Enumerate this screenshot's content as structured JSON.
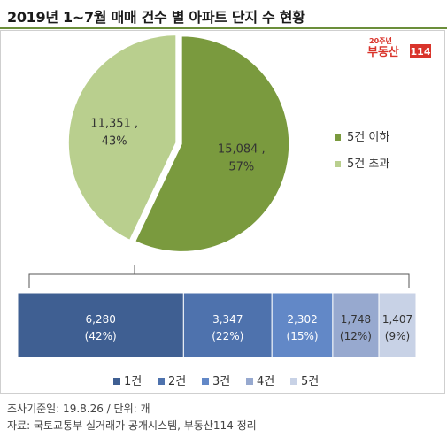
{
  "title": "2019년 1~7월 매매 건수 별 아파트 단지 수 현황",
  "logo": {
    "badge_text": "20주년",
    "brand_text": "부동산",
    "number_text": "114"
  },
  "colors": {
    "pie_small": "#7a9a3e",
    "pie_large": "#b9cf8e",
    "bar_1": "#3f5f92",
    "bar_2": "#4e72ad",
    "bar_3": "#6288c7",
    "bar_4": "#97a9cf",
    "bar_5": "#c8d2e6"
  },
  "chart_data": [
    {
      "type": "pie",
      "categories": [
        "5건 이하",
        "5건 초과"
      ],
      "values": [
        15084,
        11351
      ],
      "labels": [
        "15,084 ,",
        "11,351 ,"
      ],
      "percent_labels": [
        "57%",
        "43%"
      ],
      "legend_position": "right"
    },
    {
      "type": "bar",
      "orientation": "horizontal-stacked",
      "categories": [
        "1건",
        "2건",
        "3건",
        "4건",
        "5건"
      ],
      "values": [
        6280,
        3347,
        2302,
        1748,
        1407
      ],
      "value_labels": [
        "6,280",
        "3,347",
        "2,302",
        "1,748",
        "1,407"
      ],
      "percent_labels": [
        "(42%)",
        "(22%)",
        "(15%)",
        "(12%)",
        "(9%)"
      ],
      "legend_position": "bottom"
    }
  ],
  "footer": {
    "line1": "조사기준일: 19.8.26 / 단위: 개",
    "line2": "자료: 국토교통부 실거래가 공개시스템, 부동산114 정리"
  }
}
